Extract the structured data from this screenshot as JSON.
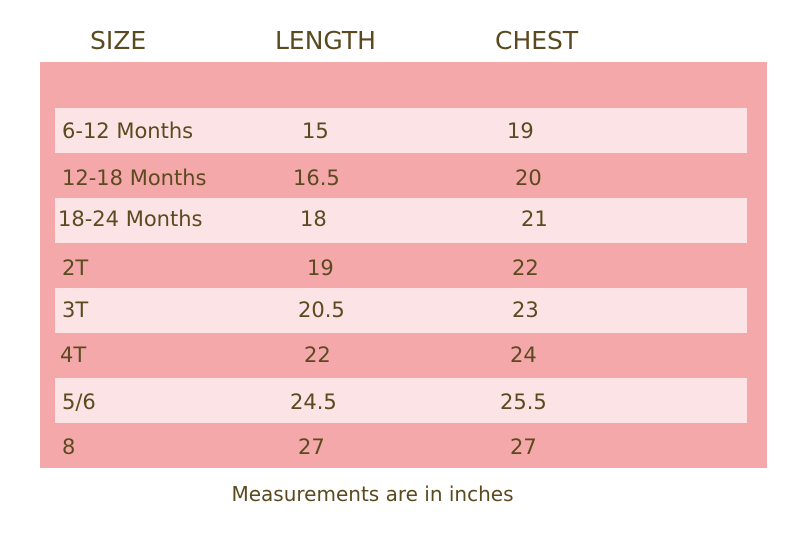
{
  "table": {
    "headers": [
      "SIZE",
      "LENGTH",
      "CHEST"
    ],
    "rows": [
      [
        "6-12 Months",
        "15",
        "19"
      ],
      [
        "12-18 Months",
        "16.5",
        "20"
      ],
      [
        "18-24 Months",
        "18",
        "21"
      ],
      [
        "2T",
        "19",
        "22"
      ],
      [
        "3T",
        "20.5",
        "23"
      ],
      [
        "4T",
        "22",
        "24"
      ],
      [
        "5/6",
        "24.5",
        "25.5"
      ],
      [
        "8",
        "27",
        "27"
      ]
    ]
  },
  "footnote": "Measurements are in inches"
}
